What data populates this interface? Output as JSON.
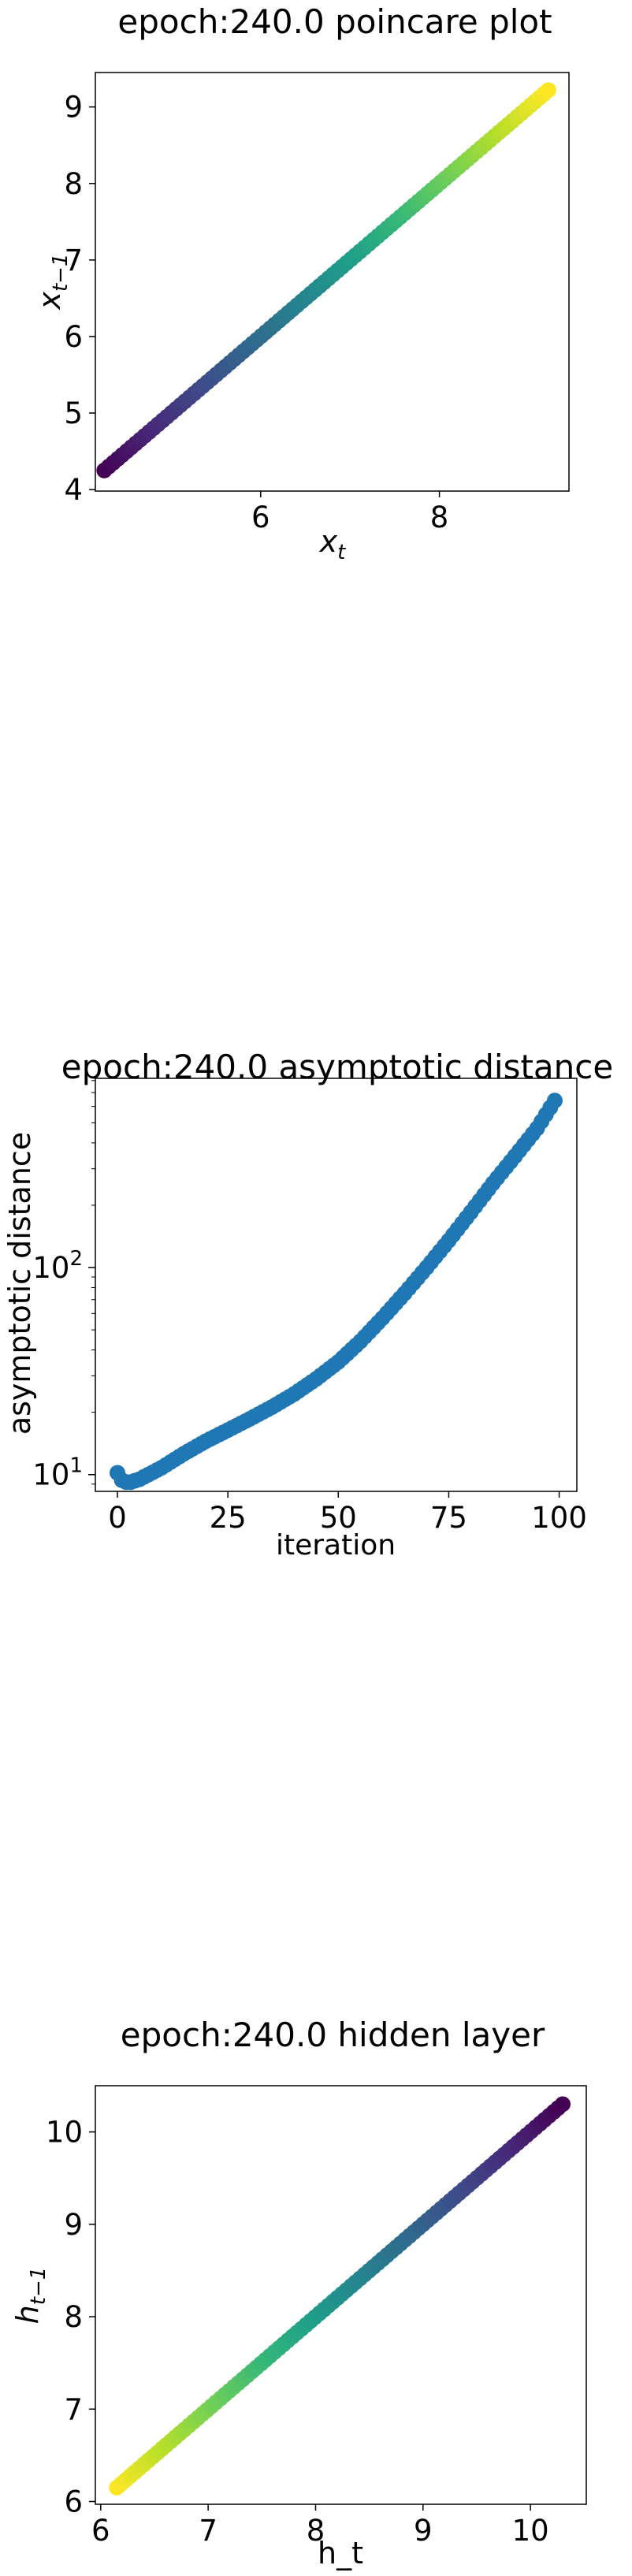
{
  "chart_data": [
    {
      "type": "scatter",
      "title": "epoch:240.0 poincare plot",
      "xlabel_base": "x",
      "xlabel_sub": "t",
      "ylabel_base": "x",
      "ylabel_sub": "t−1",
      "xlim": [
        4.15,
        9.45
      ],
      "ylim": [
        3.98,
        9.45
      ],
      "xticks": [
        6,
        8
      ],
      "yticks": [
        4,
        5,
        6,
        7,
        8,
        9
      ],
      "x_range": [
        4.25,
        9.22
      ],
      "y_range": [
        4.25,
        9.22
      ],
      "n_points": 100,
      "colormap": "viridis",
      "color_direction": "low-to-high",
      "grid": false
    },
    {
      "type": "scatter",
      "title": "epoch:240.0 asymptotic distance",
      "xlabel": "iteration",
      "ylabel": "asymptotic distance",
      "yscale": "log",
      "xlim": [
        -5,
        104
      ],
      "ylim": [
        8.3,
        820
      ],
      "xticks": [
        0,
        25,
        50,
        75,
        100
      ],
      "yticks": [
        {
          "base": "10",
          "exp": "1",
          "value": 10
        },
        {
          "base": "10",
          "exp": "2",
          "value": 100
        }
      ],
      "x": [
        0,
        1,
        2,
        3,
        5,
        10,
        15,
        20,
        25,
        30,
        35,
        40,
        45,
        50,
        55,
        60,
        65,
        70,
        75,
        80,
        85,
        90,
        95,
        99
      ],
      "y": [
        10.2,
        9.4,
        9.2,
        9.2,
        9.5,
        10.8,
        12.6,
        14.5,
        16.4,
        18.6,
        21.2,
        24.5,
        29.0,
        35.0,
        44.0,
        57.0,
        75.0,
        100.0,
        135.0,
        185.0,
        255.0,
        345.0,
        470.0,
        640.0
      ],
      "color": "#1f77b4",
      "grid": false
    },
    {
      "type": "scatter",
      "title": "epoch:240.0 hidden layer",
      "xlabel": "h_t",
      "ylabel_base": "h",
      "ylabel_sub": "t−1",
      "xlim": [
        5.95,
        10.52
      ],
      "ylim": [
        5.97,
        10.5
      ],
      "xticks": [
        6,
        7,
        8,
        9,
        10
      ],
      "yticks": [
        6,
        7,
        8,
        9,
        10
      ],
      "x_range": [
        6.15,
        10.3
      ],
      "y_range": [
        6.15,
        10.3
      ],
      "n_points": 100,
      "colormap": "viridis",
      "color_direction": "high-to-low",
      "grid": false
    }
  ]
}
